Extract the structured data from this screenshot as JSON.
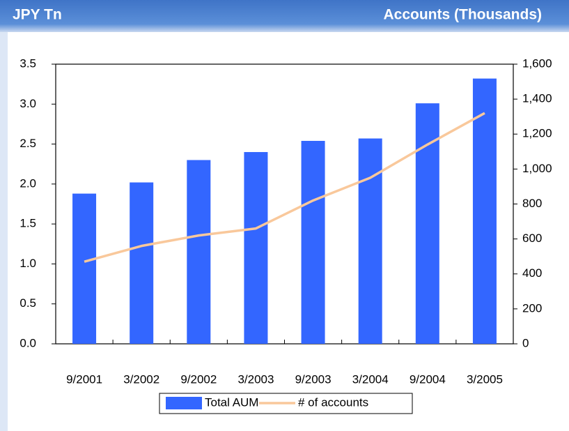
{
  "chart_data": {
    "type": "bar_line",
    "ylabel": "JPY Tn",
    "y2label": "Accounts (Thousands)",
    "categories": [
      "9/2001",
      "3/2002",
      "9/2002",
      "3/2003",
      "9/2003",
      "3/2004",
      "9/2004",
      "3/2005"
    ],
    "series": [
      {
        "name": "Total AUM",
        "type": "bar",
        "color": "#3366ff",
        "values": [
          1.88,
          2.02,
          2.3,
          2.4,
          2.54,
          2.57,
          3.01,
          3.32
        ]
      },
      {
        "name": "# of accounts",
        "type": "line",
        "axis": "y2",
        "color": "#f9c89b",
        "values": [
          470,
          560,
          620,
          660,
          820,
          950,
          1140,
          1320
        ]
      }
    ],
    "ylim": [
      0,
      3.5
    ],
    "yticks": [
      {
        "value": 0,
        "label": "0.0"
      },
      {
        "value": 0.5,
        "label": "0.5"
      },
      {
        "value": 1,
        "label": "1.0"
      },
      {
        "value": 1.5,
        "label": "1.5"
      },
      {
        "value": 2,
        "label": "2.0"
      },
      {
        "value": 2.5,
        "label": "2.5"
      },
      {
        "value": 3,
        "label": "3.0"
      },
      {
        "value": 3.5,
        "label": "3.5"
      }
    ],
    "y2lim": [
      0,
      1600
    ],
    "y2ticks": [
      0,
      200,
      400,
      600,
      800,
      {
        "value": 1000,
        "label": "1,000"
      },
      {
        "value": 1200,
        "label": "1,200"
      },
      {
        "value": 1400,
        "label": "1,400"
      },
      {
        "value": 1600,
        "label": "1,600"
      }
    ],
    "grid": false,
    "legend": "bottom"
  }
}
